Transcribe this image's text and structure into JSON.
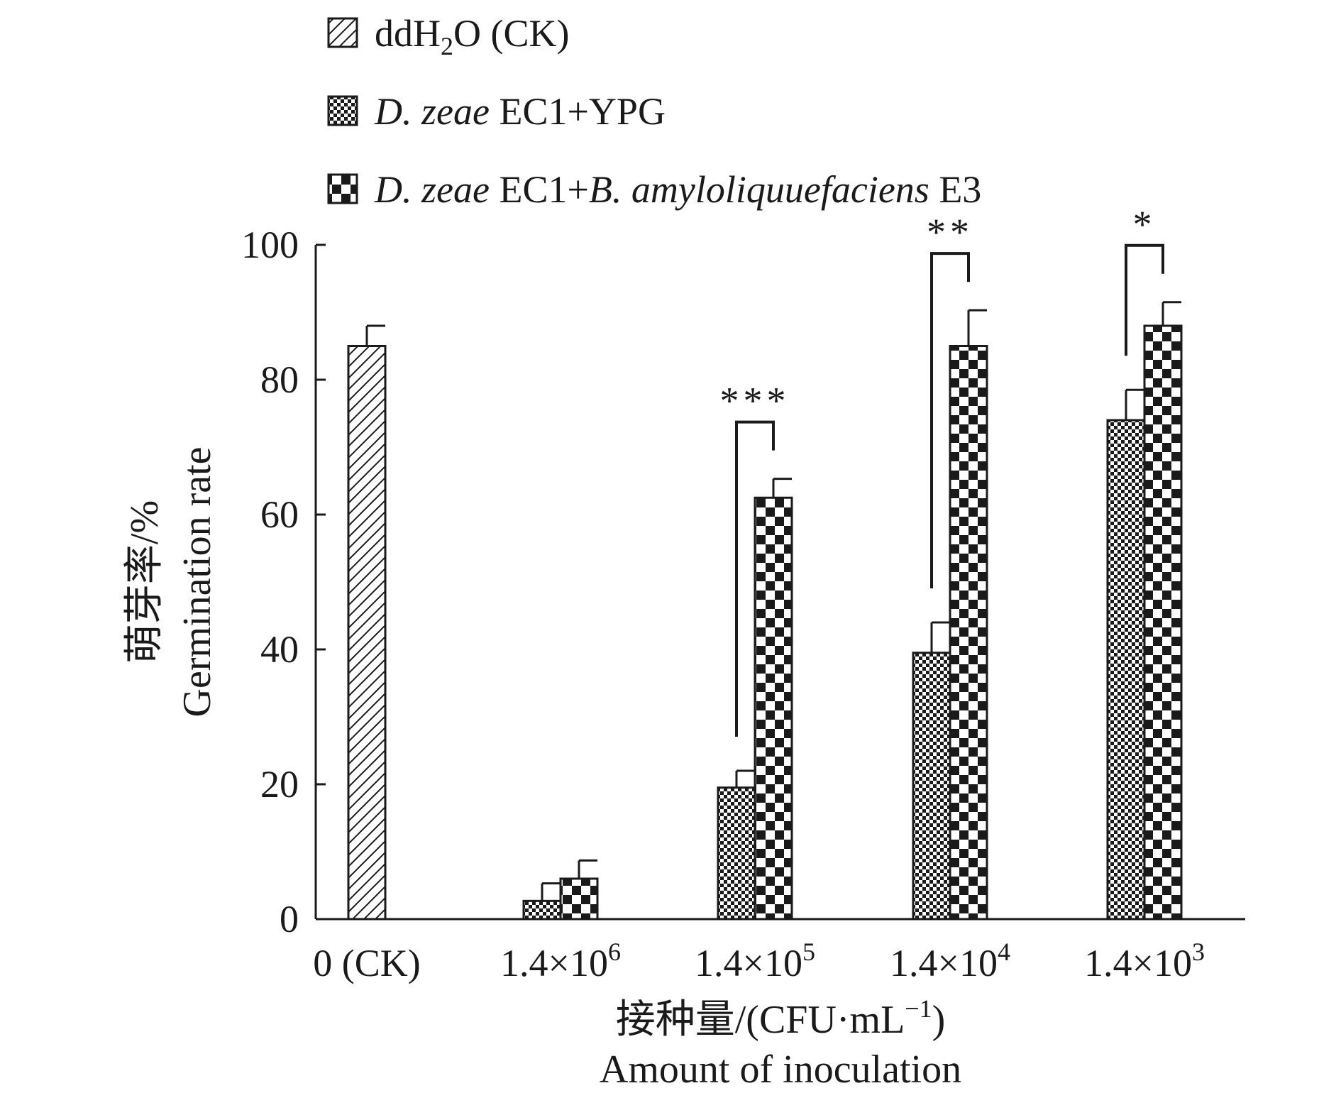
{
  "chart_data": {
    "type": "bar",
    "categories": [
      "0 (CK)",
      "1.4×10^6",
      "1.4×10^5",
      "1.4×10^4",
      "1.4×10^3"
    ],
    "category_labels": [
      {
        "base": "0 (CK)",
        "sup": ""
      },
      {
        "base": "1.4×10",
        "sup": "6"
      },
      {
        "base": "1.4×10",
        "sup": "5"
      },
      {
        "base": "1.4×10",
        "sup": "4"
      },
      {
        "base": "1.4×10",
        "sup": "3"
      }
    ],
    "series": [
      {
        "name": "ddH2O (CK)",
        "pattern": "hatch",
        "values": [
          85,
          null,
          null,
          null,
          null
        ],
        "errors": [
          3,
          null,
          null,
          null,
          null
        ]
      },
      {
        "name": "D. zeae EC1+YPG",
        "pattern": "fine-checker",
        "values": [
          null,
          2.7,
          19.5,
          39.5,
          74
        ],
        "errors": [
          null,
          2.6,
          2.5,
          4.5,
          4.5
        ]
      },
      {
        "name": "D. zeae EC1+B. amyloliquuefaciens E3",
        "pattern": "coarse-checker",
        "values": [
          null,
          6,
          62.5,
          85,
          88
        ],
        "errors": [
          null,
          2.7,
          2.8,
          5.3,
          3.5
        ]
      }
    ],
    "legend": [
      {
        "parts": [
          {
            "t": "ddH",
            "s": "n"
          },
          {
            "t": "2",
            "s": "sub"
          },
          {
            "t": "O (CK)",
            "s": "n"
          }
        ]
      },
      {
        "parts": [
          {
            "t": "D. zeae",
            "s": "i"
          },
          {
            "t": " EC1+YPG",
            "s": "n"
          }
        ]
      },
      {
        "parts": [
          {
            "t": "D. zeae",
            "s": "i"
          },
          {
            "t": " EC1+",
            "s": "n"
          },
          {
            "t": "B. amyloliquuefaciens",
            "s": "i"
          },
          {
            "t": " E3",
            "s": "n"
          }
        ]
      }
    ],
    "legend_position": "top",
    "significance": [
      {
        "category_index": 2,
        "label": "***"
      },
      {
        "category_index": 3,
        "label": "**"
      },
      {
        "category_index": 4,
        "label": "*"
      }
    ],
    "y_ticks": [
      0,
      20,
      40,
      60,
      80,
      100
    ],
    "ylim": [
      0,
      100
    ],
    "ylabel_cn": "萌芽率/%",
    "ylabel_en": "Germination rate",
    "xlabel_cn_base": "接种量/(CFU·mL",
    "xlabel_cn_sup": "−1",
    "xlabel_cn_tail": ")",
    "xlabel_en": "Amount of inoculation",
    "grid": false
  }
}
